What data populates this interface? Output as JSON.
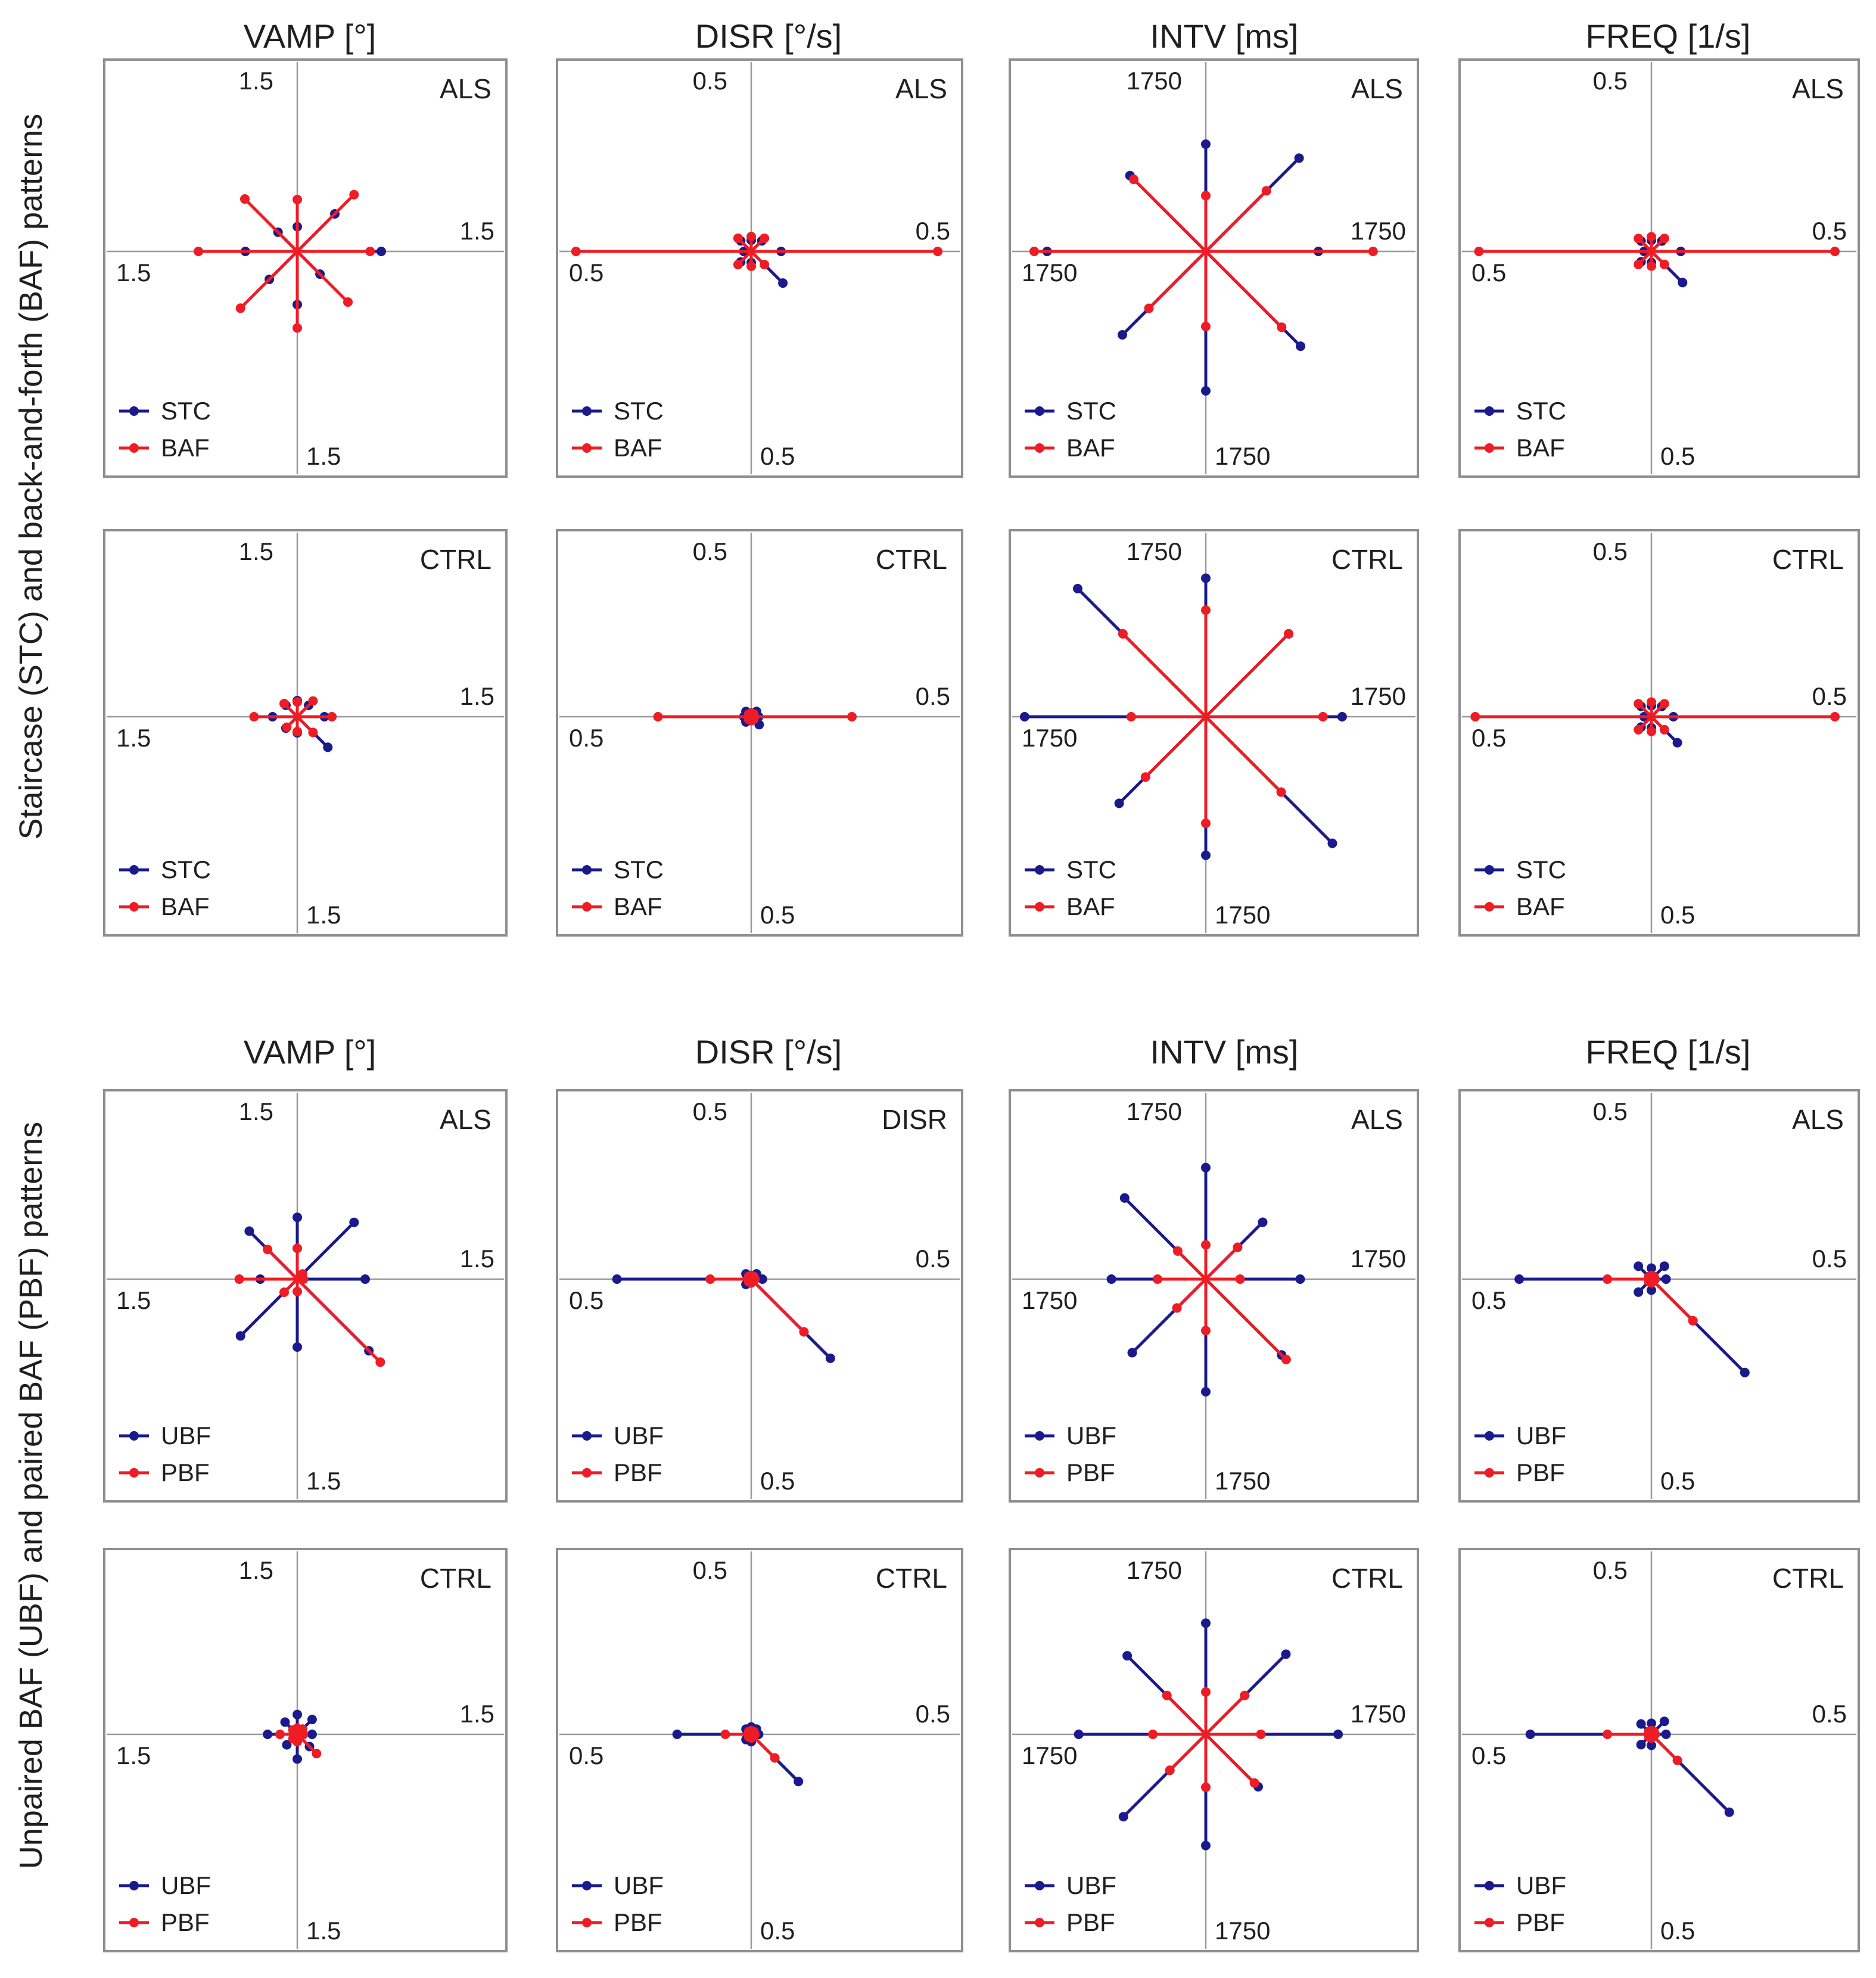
{
  "section_titles": [
    "Staircase (STC) and back-and-forth (BAF) patterns",
    "Unpaired BAF (UBF) and paired BAF (PBF) patterns"
  ],
  "column_titles": [
    "VAMP [°]",
    "DISR [°/s]",
    "INTV [ms]",
    "FREQ [1/s]"
  ],
  "colors": {
    "series_a": "#1a1a8c",
    "series_b": "#ee1c24",
    "axis": "#9a9a9a",
    "frame": "#8f8f8f"
  },
  "chart_data": [
    {
      "type": "scatter",
      "section": 0,
      "column": 0,
      "group": "ALS",
      "title": "VAMP [°]",
      "axis_max": 1.5,
      "axis_labels": {
        "top": "1.5",
        "right": "1.5",
        "bottom": "1.5",
        "left": "1.5"
      },
      "series": [
        {
          "name": "STC",
          "values": [
            0.68,
            0.43,
            0.2,
            0.22,
            0.42,
            0.32,
            0.43,
            0.26
          ]
        },
        {
          "name": "BAF",
          "values": [
            0.59,
            0.65,
            0.42,
            0.6,
            0.8,
            0.65,
            0.62,
            0.58
          ]
        }
      ]
    },
    {
      "type": "scatter",
      "section": 0,
      "column": 1,
      "group": "ALS",
      "title": "DISR [°/s]",
      "axis_max": 0.5,
      "axis_labels": {
        "top": "0.5",
        "right": "0.5",
        "bottom": "0.5",
        "left": "0.5"
      },
      "series": [
        {
          "name": "STC",
          "values": [
            0.08,
            0.04,
            0.03,
            0.04,
            0.02,
            0.04,
            0.03,
            0.12
          ]
        },
        {
          "name": "BAF",
          "values": [
            0.5,
            0.05,
            0.04,
            0.05,
            0.47,
            0.05,
            0.04,
            0.05
          ]
        }
      ]
    },
    {
      "type": "scatter",
      "section": 0,
      "column": 2,
      "group": "ALS",
      "title": "INTV [ms]",
      "axis_max": 1750,
      "axis_labels": {
        "top": "1750",
        "right": "1750",
        "bottom": "1750",
        "left": "1750"
      },
      "series": [
        {
          "name": "STC",
          "values": [
            1050,
            1230,
            1000,
            1000,
            1480,
            1100,
            1300,
            1250
          ]
        },
        {
          "name": "BAF",
          "values": [
            1560,
            800,
            520,
            950,
            1600,
            750,
            700,
            1000
          ]
        }
      ]
    },
    {
      "type": "scatter",
      "section": 0,
      "column": 3,
      "group": "ALS",
      "title": "FREQ [1/s]",
      "axis_max": 0.5,
      "axis_labels": {
        "top": "0.5",
        "right": "0.5",
        "bottom": "0.5",
        "left": "0.5"
      },
      "series": [
        {
          "name": "STC",
          "values": [
            0.08,
            0.04,
            0.03,
            0.04,
            0.02,
            0.04,
            0.03,
            0.12
          ]
        },
        {
          "name": "BAF",
          "values": [
            0.5,
            0.05,
            0.04,
            0.05,
            0.47,
            0.05,
            0.04,
            0.05
          ]
        }
      ]
    },
    {
      "type": "scatter",
      "section": 0,
      "column": 0,
      "group": "CTRL",
      "title": "VAMP [°]",
      "axis_max": 1.5,
      "axis_labels": {
        "top": "1.5",
        "right": "1.5",
        "bottom": "1.5",
        "left": "1.5"
      },
      "series": [
        {
          "name": "STC",
          "values": [
            0.22,
            0.13,
            0.13,
            0.13,
            0.2,
            0.13,
            0.13,
            0.35
          ]
        },
        {
          "name": "BAF",
          "values": [
            0.28,
            0.18,
            0.12,
            0.15,
            0.35,
            0.12,
            0.12,
            0.18
          ]
        }
      ]
    },
    {
      "type": "scatter",
      "section": 0,
      "column": 1,
      "group": "CTRL",
      "title": "DISR [°/s]",
      "axis_max": 0.5,
      "axis_labels": {
        "top": "0.5",
        "right": "0.5",
        "bottom": "0.5",
        "left": "0.5"
      },
      "series": [
        {
          "name": "STC",
          "values": [
            0.02,
            0.02,
            0.01,
            0.02,
            0.02,
            0.02,
            0.01,
            0.03
          ]
        },
        {
          "name": "BAF",
          "values": [
            0.27,
            0.01,
            0.01,
            0.01,
            0.25,
            0.01,
            0.01,
            0.01
          ]
        }
      ]
    },
    {
      "type": "scatter",
      "section": 0,
      "column": 2,
      "group": "CTRL",
      "title": "INTV [ms]",
      "axis_max": 1750,
      "axis_labels": {
        "top": "1750",
        "right": "1750",
        "bottom": "1750",
        "left": "1750"
      },
      "series": [
        {
          "name": "STC",
          "values": [
            1280,
            1100,
            1300,
            1700,
            1700,
            1150,
            1300,
            1680
          ]
        },
        {
          "name": "BAF",
          "values": [
            1100,
            1100,
            1000,
            1100,
            700,
            800,
            1000,
            1000
          ]
        }
      ]
    },
    {
      "type": "scatter",
      "section": 0,
      "column": 3,
      "group": "CTRL",
      "title": "FREQ [1/s]",
      "axis_max": 0.5,
      "axis_labels": {
        "top": "0.5",
        "right": "0.5",
        "bottom": "0.5",
        "left": "0.5"
      },
      "series": [
        {
          "name": "STC",
          "values": [
            0.06,
            0.04,
            0.03,
            0.04,
            0.02,
            0.04,
            0.03,
            0.1
          ]
        },
        {
          "name": "BAF",
          "values": [
            0.5,
            0.05,
            0.04,
            0.05,
            0.48,
            0.05,
            0.04,
            0.05
          ]
        }
      ]
    },
    {
      "type": "scatter",
      "section": 1,
      "column": 0,
      "group": "ALS",
      "title": "VAMP [°]",
      "axis_max": 1.5,
      "axis_labels": {
        "top": "1.5",
        "right": "1.5",
        "bottom": "1.5",
        "left": "1.5"
      },
      "series": [
        {
          "name": "UBF",
          "values": [
            0.55,
            0.65,
            0.5,
            0.55,
            0.3,
            0.65,
            0.55,
            0.82
          ]
        },
        {
          "name": "PBF",
          "values": [
            0.05,
            0.06,
            0.25,
            0.34,
            0.47,
            0.15,
            0.1,
            0.95
          ]
        }
      ]
    },
    {
      "type": "scatter",
      "section": 1,
      "column": 1,
      "group": "DISR",
      "title": "DISR [°/s]",
      "axis_max": 0.5,
      "axis_labels": {
        "top": "0.5",
        "right": "0.5",
        "bottom": "0.5",
        "left": "0.5"
      },
      "series": [
        {
          "name": "UBF",
          "values": [
            0.03,
            0.02,
            0.01,
            0.02,
            0.36,
            0.02,
            0.01,
            0.3
          ]
        },
        {
          "name": "PBF",
          "values": [
            0.01,
            0.01,
            0.01,
            0.01,
            0.11,
            0.01,
            0.01,
            0.2
          ]
        }
      ]
    },
    {
      "type": "scatter",
      "section": 1,
      "column": 2,
      "group": "ALS",
      "title": "INTV [ms]",
      "axis_max": 1750,
      "axis_labels": {
        "top": "1750",
        "right": "1750",
        "bottom": "1750",
        "left": "1750"
      },
      "series": [
        {
          "name": "UBF",
          "values": [
            880,
            750,
            1040,
            1070,
            880,
            970,
            1050,
            1000
          ]
        },
        {
          "name": "PBF",
          "values": [
            320,
            420,
            320,
            370,
            450,
            380,
            480,
            1060
          ]
        }
      ]
    },
    {
      "type": "scatter",
      "section": 1,
      "column": 3,
      "group": "ALS",
      "title": "FREQ [1/s]",
      "axis_max": 0.5,
      "axis_labels": {
        "top": "0.5",
        "right": "0.5",
        "bottom": "0.5",
        "left": "0.5"
      },
      "series": [
        {
          "name": "UBF",
          "values": [
            0.04,
            0.05,
            0.03,
            0.05,
            0.36,
            0.05,
            0.03,
            0.36
          ]
        },
        {
          "name": "PBF",
          "values": [
            0.01,
            0.01,
            0.01,
            0.01,
            0.12,
            0.01,
            0.01,
            0.16
          ]
        }
      ]
    },
    {
      "type": "scatter",
      "section": 1,
      "column": 0,
      "group": "CTRL",
      "title": "VAMP [°]",
      "axis_max": 1.5,
      "axis_labels": {
        "top": "1.5",
        "right": "1.5",
        "bottom": "1.5",
        "left": "1.5"
      },
      "series": [
        {
          "name": "UBF",
          "values": [
            0.12,
            0.17,
            0.16,
            0.14,
            0.24,
            0.12,
            0.2,
            0.14
          ]
        },
        {
          "name": "PBF",
          "values": [
            0.05,
            0.06,
            0.05,
            0.05,
            0.14,
            0.05,
            0.06,
            0.22
          ]
        }
      ]
    },
    {
      "type": "scatter",
      "section": 1,
      "column": 1,
      "group": "CTRL",
      "title": "DISR [°/s]",
      "axis_max": 0.5,
      "axis_labels": {
        "top": "0.5",
        "right": "0.5",
        "bottom": "0.5",
        "left": "0.5"
      },
      "series": [
        {
          "name": "UBF",
          "values": [
            0.02,
            0.02,
            0.02,
            0.02,
            0.2,
            0.02,
            0.02,
            0.18
          ]
        },
        {
          "name": "PBF",
          "values": [
            0.01,
            0.01,
            0.01,
            0.01,
            0.07,
            0.01,
            0.01,
            0.09
          ]
        }
      ]
    },
    {
      "type": "scatter",
      "section": 1,
      "column": 2,
      "group": "CTRL",
      "title": "INTV [ms]",
      "axis_max": 1750,
      "axis_labels": {
        "top": "1750",
        "right": "1750",
        "bottom": "1750",
        "left": "1750"
      },
      "series": [
        {
          "name": "UBF",
          "values": [
            1250,
            1070,
            1050,
            1050,
            1200,
            1100,
            1050,
            700
          ]
        },
        {
          "name": "PBF",
          "values": [
            520,
            520,
            400,
            520,
            500,
            480,
            500,
            650
          ]
        }
      ]
    },
    {
      "type": "scatter",
      "section": 1,
      "column": 3,
      "group": "CTRL",
      "title": "FREQ [1/s]",
      "axis_max": 0.5,
      "axis_labels": {
        "top": "0.5",
        "right": "0.5",
        "bottom": "0.5",
        "left": "0.5"
      },
      "series": [
        {
          "name": "UBF",
          "values": [
            0.04,
            0.05,
            0.03,
            0.04,
            0.33,
            0.04,
            0.03,
            0.3
          ]
        },
        {
          "name": "PBF",
          "values": [
            0.01,
            0.01,
            0.01,
            0.01,
            0.12,
            0.01,
            0.01,
            0.1
          ]
        }
      ]
    }
  ]
}
